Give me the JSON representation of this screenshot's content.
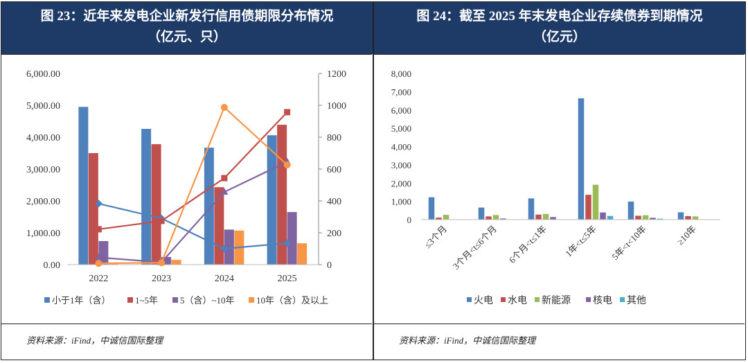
{
  "left": {
    "title_line1": "图 23：近年来发电企业新发行信用债期限分布情况",
    "title_line2": "（亿元、只）",
    "source": "资料来源：iFind，中诚信国际整理"
  },
  "right": {
    "title_line1": "图 24：截至 2025 年末发电企业存续债券到期情况",
    "title_line2": "（亿元）",
    "source": "资料来源：iFind，中诚信国际整理"
  },
  "chart_data": [
    {
      "type": "bar+line",
      "categories": [
        "2022",
        "2023",
        "2024",
        "2025"
      ],
      "ylim": [
        0,
        6000
      ],
      "yticks": [
        "0.00",
        "1,000.00",
        "2,000.00",
        "3,000.00",
        "4,000.00",
        "5,000.00",
        "6,000.00"
      ],
      "y2lim": [
        0,
        1200
      ],
      "y2ticks": [
        "0",
        "200",
        "400",
        "600",
        "800",
        "1000",
        "1200"
      ],
      "legend_position": "bottom",
      "grid": false,
      "series": [
        {
          "name": "小于1年（含）",
          "color": "#4f81bd",
          "bar_values": [
            4950,
            4260,
            3670,
            4060
          ],
          "line_values": [
            383,
            290,
            100,
            135
          ],
          "marker": "diamond"
        },
        {
          "name": "1~5年",
          "color": "#c0504d",
          "bar_values": [
            3500,
            3780,
            2430,
            4390
          ],
          "line_values": [
            222,
            274,
            543,
            957
          ],
          "marker": "square"
        },
        {
          "name": "5（含）~10年",
          "color": "#8064a2",
          "bar_values": [
            740,
            240,
            1100,
            1650
          ],
          "line_values": [
            45,
            15,
            456,
            645
          ],
          "marker": "triangle"
        },
        {
          "name": "10年（含）及以上",
          "color": "#f79646",
          "bar_values": [
            40,
            150,
            1070,
            670
          ],
          "line_values": [
            8,
            12,
            987,
            626
          ],
          "marker": "circle"
        }
      ]
    },
    {
      "type": "bar",
      "categories": [
        "≤3个月",
        "3个月<t≤6个月",
        "6个月<t≤1年",
        "1年<t≤5年",
        "5年<t<10年",
        "≥10年"
      ],
      "ylim": [
        0,
        8000
      ],
      "yticks": [
        "0",
        "1,000",
        "2,000",
        "3,000",
        "4,000",
        "5,000",
        "6,000",
        "7,000",
        "8,000"
      ],
      "legend_position": "bottom",
      "grid": false,
      "series": [
        {
          "name": "火电",
          "color": "#4f81bd",
          "values": [
            1225,
            660,
            1160,
            6640,
            990,
            400
          ]
        },
        {
          "name": "水电",
          "color": "#c0504d",
          "values": [
            110,
            175,
            275,
            1360,
            210,
            190
          ]
        },
        {
          "name": "新能源",
          "color": "#9bbb59",
          "values": [
            260,
            250,
            310,
            1910,
            240,
            175
          ]
        },
        {
          "name": "核电",
          "color": "#8064a2",
          "values": [
            0,
            60,
            140,
            390,
            100,
            0
          ]
        },
        {
          "name": "其他",
          "color": "#4bacc6",
          "values": [
            0,
            0,
            5,
            200,
            50,
            0
          ]
        }
      ]
    }
  ]
}
